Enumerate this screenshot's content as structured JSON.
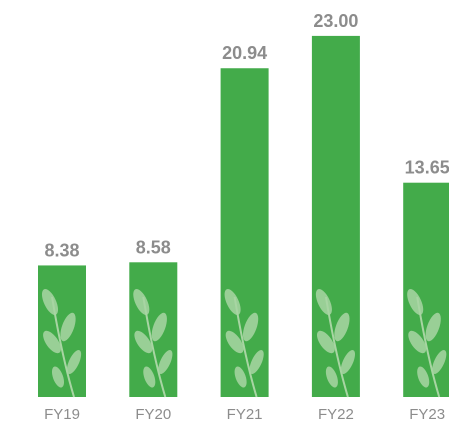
{
  "chart_data": {
    "type": "bar",
    "categories": [
      "FY19",
      "FY20",
      "FY21",
      "FY22",
      "FY23"
    ],
    "values": [
      8.38,
      8.58,
      20.94,
      23.0,
      13.65
    ],
    "value_labels": [
      "8.38",
      "8.58",
      "20.94",
      "23.00",
      "13.65"
    ],
    "color": "#43ab4a"
  }
}
